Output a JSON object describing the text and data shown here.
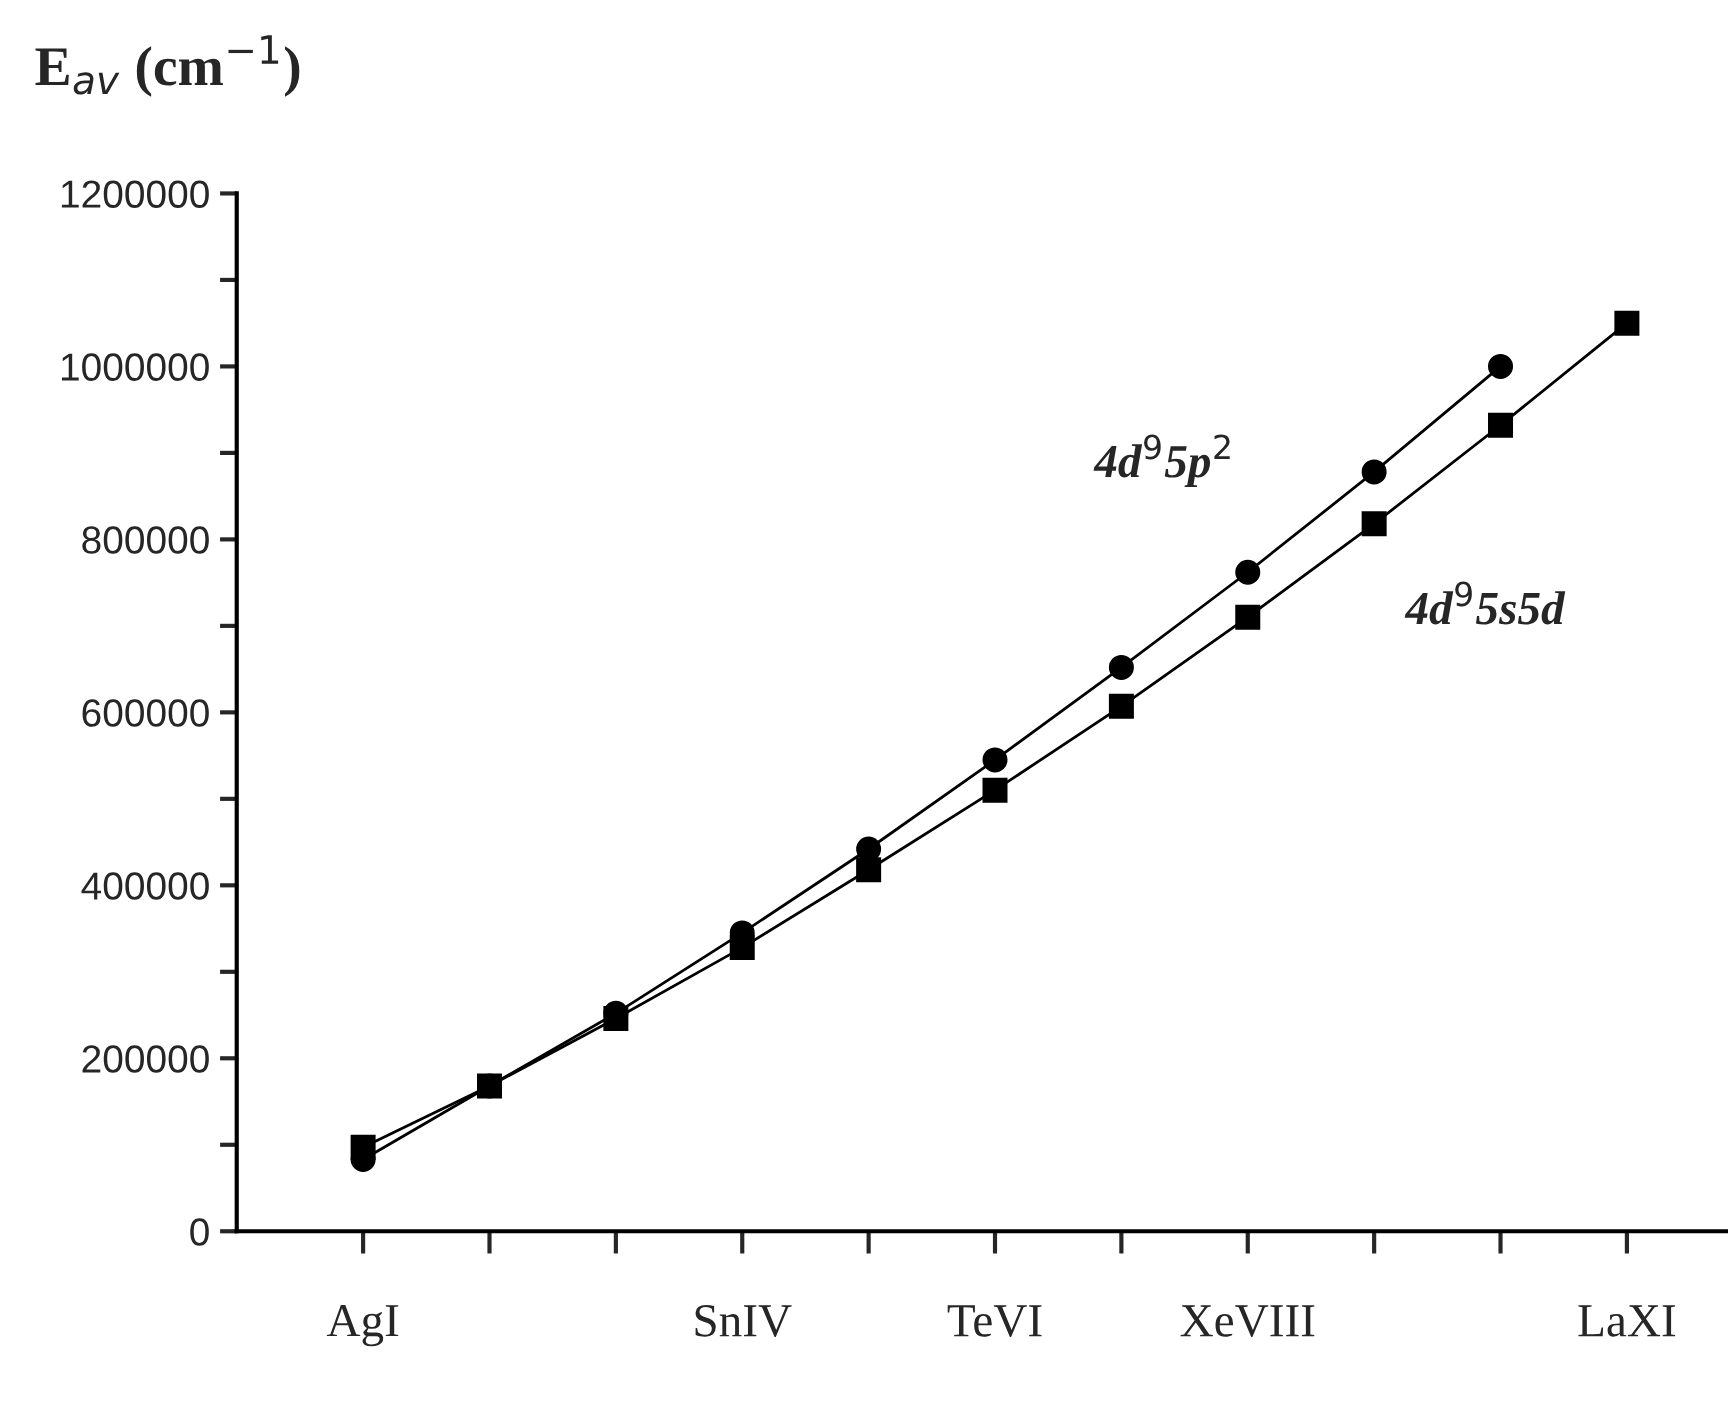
{
  "chart_data": {
    "type": "line",
    "ylabel": "E$_{av}$ (cm$^{−1}$)",
    "categories": [
      "AgI",
      null,
      null,
      "SnIV",
      null,
      "TeVI",
      null,
      "XeVIII",
      null,
      null,
      "LaXI"
    ],
    "ylim": [
      0,
      1200000
    ],
    "yticks": [
      0,
      {
        "value": 100000,
        "label": null
      },
      200000,
      {
        "value": 300000,
        "label": null
      },
      400000,
      {
        "value": 500000,
        "label": null
      },
      600000,
      {
        "value": 700000,
        "label": null
      },
      800000,
      {
        "value": 900000,
        "label": null
      },
      1000000,
      {
        "value": 1100000,
        "label": null
      },
      1200000
    ],
    "grid": false,
    "legend": false,
    "line_style": "solid",
    "series": [
      {
        "name": "4d$^{9}$5p$^{2}$",
        "color": "#000000",
        "marker": "circle",
        "values": [
          83000,
          168000,
          252000,
          345000,
          442000,
          545000,
          652000,
          762000,
          878000,
          1000000,
          null
        ]
      },
      {
        "name": "4d$^{9}$5s5d",
        "color": "#000000",
        "marker": "square",
        "values": [
          97000,
          168000,
          246000,
          328000,
          418000,
          510000,
          607000,
          710000,
          818000,
          932000,
          1050000
        ]
      }
    ]
  }
}
